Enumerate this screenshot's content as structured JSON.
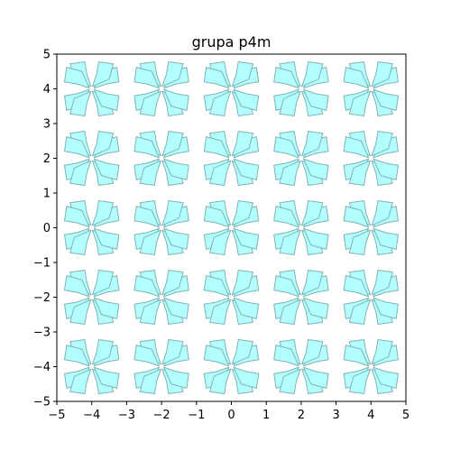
{
  "chart_data": {
    "type": "scatter",
    "title": "grupa p4m",
    "xlabel": "",
    "ylabel": "",
    "xlim": [
      -5,
      5
    ],
    "ylim": [
      -5,
      5
    ],
    "x_ticks": [
      -5,
      -4,
      -3,
      -2,
      -1,
      0,
      1,
      2,
      3,
      4,
      5
    ],
    "y_ticks": [
      -5,
      -4,
      -3,
      -2,
      -1,
      0,
      1,
      2,
      3,
      4,
      5
    ],
    "x_tick_labels": [
      "−5",
      "−4",
      "−3",
      "−2",
      "−1",
      "0",
      "1",
      "2",
      "3",
      "4",
      "5"
    ],
    "y_tick_labels": [
      "−5",
      "−4",
      "−3",
      "−2",
      "−1",
      "0",
      "1",
      "2",
      "3",
      "4",
      "5"
    ],
    "grid": false,
    "motif_centers_x": [
      -4,
      -2,
      0,
      2,
      4
    ],
    "motif_centers_y": [
      -4,
      -2,
      0,
      2,
      4
    ],
    "motif_petal": [
      [
        0.07,
        0.02
      ],
      [
        0.42,
        0.14
      ],
      [
        0.78,
        0.2
      ],
      [
        0.72,
        0.62
      ],
      [
        0.28,
        0.5
      ]
    ],
    "petal_count": 8,
    "fill_color": "#b3ffff",
    "edge_color": "#80b3b3"
  }
}
